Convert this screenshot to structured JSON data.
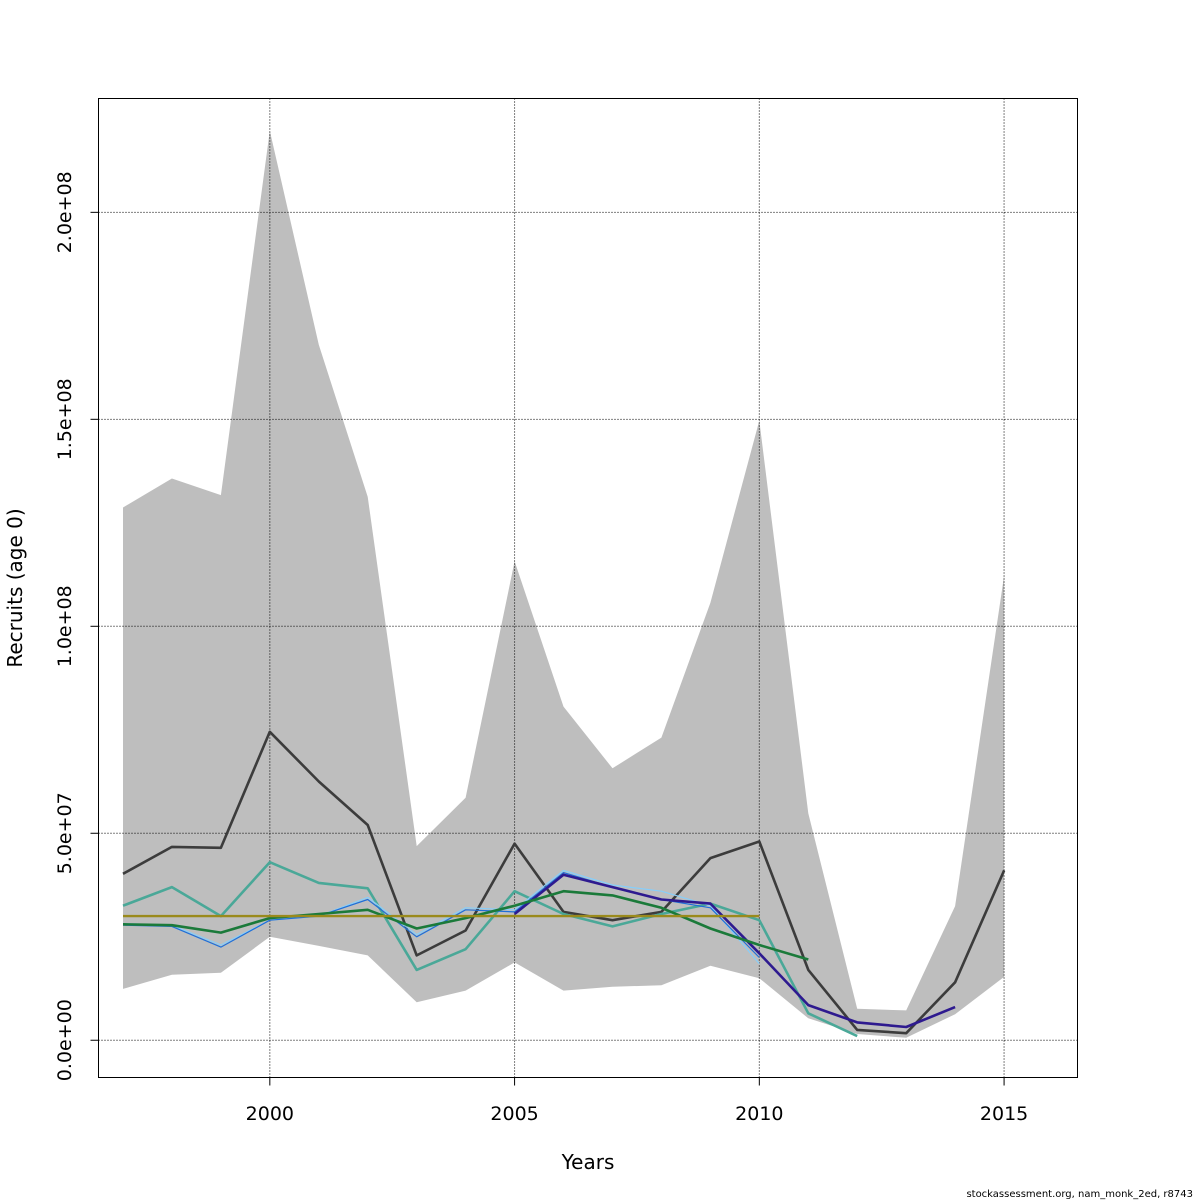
{
  "chart_data": {
    "type": "line",
    "xlabel": "Years",
    "ylabel": "Recruits (age 0)",
    "xlim": [
      1996.5,
      2016.5
    ],
    "ylim": [
      -9000000,
      227500000
    ],
    "x_ticks": [
      2000,
      2005,
      2010,
      2015
    ],
    "x_tick_labels": [
      "2000",
      "2005",
      "2010",
      "2015"
    ],
    "y_ticks": [
      0,
      50000000,
      100000000,
      150000000,
      200000000
    ],
    "y_tick_labels": [
      "0.0e+00",
      "5.0e+07",
      "1.0e+08",
      "1.5e+08",
      "2.0e+08"
    ],
    "grid": true,
    "confidence_band": {
      "x": [
        1997,
        1998,
        1999,
        2000,
        2001,
        2002,
        2003,
        2004,
        2005,
        2006,
        2007,
        2008,
        2009,
        2010,
        2011,
        2012,
        2013,
        2014,
        2015
      ],
      "upper": [
        128700000,
        135700000,
        131700000,
        219700000,
        168000000,
        131300000,
        46900000,
        58600000,
        115700000,
        80600000,
        65700000,
        73100000,
        105700000,
        149700000,
        54800000,
        7600000,
        7200000,
        32400000,
        112200000
      ],
      "lower": [
        12400000,
        15800000,
        16300000,
        25000000,
        22800000,
        20500000,
        9200000,
        12000000,
        18800000,
        12000000,
        12900000,
        13300000,
        18000000,
        15000000,
        5300000,
        1500000,
        600000,
        6300000,
        15300000
      ],
      "color": "#bebebe"
    },
    "series": [
      {
        "color": "#3c3c3c",
        "width": 2.6,
        "x": [
          1997,
          1998,
          1999,
          2000,
          2001,
          2002,
          2003,
          2004,
          2005,
          2006,
          2007,
          2008,
          2009,
          2010,
          2011,
          2012,
          2013,
          2014,
          2015
        ],
        "values": [
          40200000,
          46700000,
          46500000,
          74500000,
          62500000,
          52000000,
          20500000,
          26500000,
          47500000,
          31000000,
          29000000,
          31000000,
          44000000,
          48000000,
          17000000,
          2500000,
          1700000,
          14000000,
          41000000
        ]
      },
      {
        "color": "#4aa898",
        "width": 2.6,
        "x": [
          1997,
          1998,
          1999,
          2000,
          2001,
          2002,
          2003,
          2004,
          2005,
          2006,
          2007,
          2008,
          2009,
          2010,
          2011,
          2012
        ],
        "values": [
          32500000,
          37000000,
          30000000,
          43000000,
          38000000,
          36700000,
          17000000,
          22000000,
          36000000,
          30500000,
          27500000,
          30500000,
          33000000,
          29000000,
          6500000,
          1000000
        ]
      },
      {
        "color": "#87cefa",
        "width": 1.2,
        "x": [
          1997,
          1998,
          1999,
          2000,
          2001,
          2002,
          2003,
          2004,
          2005,
          2006,
          2007,
          2008,
          2009,
          2010
        ],
        "values": [
          28200000,
          27800000,
          23000000,
          29000000,
          30000000,
          34500000,
          25500000,
          32000000,
          31500000,
          41000000,
          37500000,
          36000000,
          32500000,
          18500000
        ]
      },
      {
        "color": "#1f6fd8",
        "width": 1.2,
        "x": [
          1997,
          1998,
          1999,
          2000,
          2001,
          2002,
          2003,
          2004,
          2005,
          2006,
          2007,
          2008,
          2009,
          2010
        ],
        "values": [
          27800000,
          27500000,
          22500000,
          29000000,
          30000000,
          34000000,
          25000000,
          31500000,
          31000000,
          40500000,
          37000000,
          34000000,
          32000000,
          20000000
        ]
      },
      {
        "color": "#2e1a8f",
        "width": 2.6,
        "x": [
          2005,
          2006,
          2007,
          2008,
          2009,
          2010,
          2011,
          2012,
          2013,
          2014
        ],
        "values": [
          30500000,
          40000000,
          37000000,
          34000000,
          33000000,
          21000000,
          8500000,
          4300000,
          3200000,
          8000000
        ]
      },
      {
        "color": "#1b7a3a",
        "width": 2.6,
        "x": [
          1997,
          1998,
          1999,
          2000,
          2001,
          2002,
          2003,
          2004,
          2005,
          2006,
          2007,
          2008,
          2009,
          2010,
          2011
        ],
        "values": [
          28000000,
          27800000,
          26000000,
          29500000,
          30500000,
          31500000,
          27000000,
          29500000,
          32500000,
          36000000,
          35000000,
          32000000,
          27000000,
          23000000,
          19500000
        ]
      },
      {
        "color": "#9a8a1c",
        "width": 2.4,
        "x": [
          1997,
          2010
        ],
        "values": [
          30000000,
          30000000
        ]
      }
    ]
  },
  "footer": "stockassessment.org, nam_monk_2ed, r8743"
}
